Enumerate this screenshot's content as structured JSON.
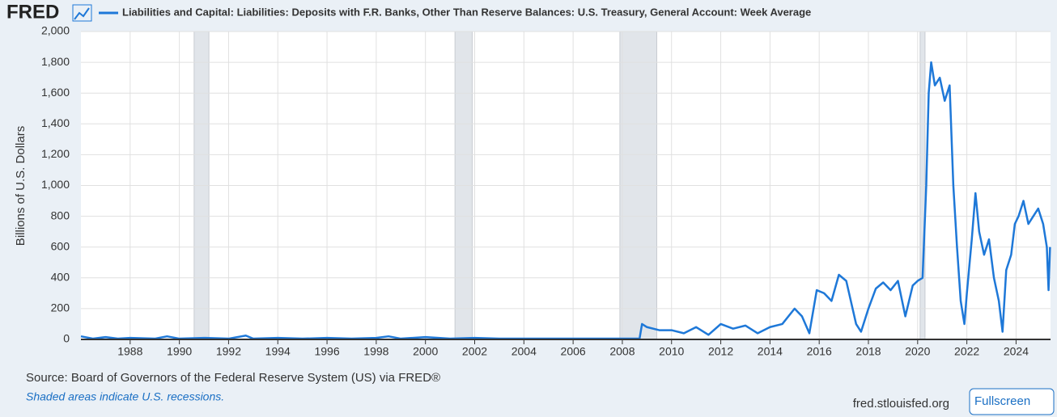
{
  "logo": "FRED",
  "chart_data": {
    "type": "line",
    "y_label": "Billions of U.S. Dollars",
    "series": [
      {
        "name": "Liabilities and Capital: Liabilities: Deposits with F.R. Banks, Other Than Reserve Balances: U.S. Treasury, General Account: Week Average",
        "color": "#1e78d8",
        "x": [
          1986.0,
          1986.5,
          1987.0,
          1987.5,
          1988.0,
          1989.0,
          1989.5,
          1990.0,
          1991.0,
          1992.0,
          1992.7,
          1993.0,
          1994.0,
          1995.0,
          1996.0,
          1997.0,
          1998.0,
          1998.5,
          1999.0,
          2000.0,
          2001.0,
          2002.0,
          2003.0,
          2004.0,
          2005.0,
          2006.0,
          2007.0,
          2008.0,
          2008.7,
          2008.8,
          2009.0,
          2009.5,
          2010.0,
          2010.5,
          2011.0,
          2011.5,
          2012.0,
          2012.5,
          2013.0,
          2013.5,
          2014.0,
          2014.5,
          2015.0,
          2015.3,
          2015.6,
          2015.9,
          2016.2,
          2016.5,
          2016.8,
          2017.1,
          2017.5,
          2017.7,
          2018.0,
          2018.3,
          2018.6,
          2018.9,
          2019.2,
          2019.5,
          2019.8,
          2020.0,
          2020.2,
          2020.35,
          2020.45,
          2020.55,
          2020.7,
          2020.9,
          2021.1,
          2021.3,
          2021.45,
          2021.6,
          2021.75,
          2021.9,
          2022.0,
          2022.2,
          2022.35,
          2022.5,
          2022.7,
          2022.9,
          2023.1,
          2023.3,
          2023.45,
          2023.6,
          2023.8,
          2023.95,
          2024.1,
          2024.3,
          2024.5,
          2024.7,
          2024.9,
          2025.1,
          2025.25,
          2025.32,
          2025.38
        ],
        "values": [
          20,
          5,
          15,
          5,
          10,
          5,
          20,
          5,
          10,
          5,
          25,
          5,
          10,
          5,
          10,
          5,
          10,
          20,
          5,
          15,
          5,
          10,
          5,
          5,
          5,
          5,
          5,
          5,
          5,
          100,
          80,
          60,
          60,
          40,
          80,
          30,
          100,
          70,
          90,
          40,
          80,
          100,
          200,
          150,
          40,
          320,
          300,
          250,
          420,
          380,
          100,
          50,
          200,
          330,
          370,
          320,
          380,
          150,
          350,
          380,
          400,
          1000,
          1600,
          1800,
          1650,
          1700,
          1550,
          1650,
          1000,
          600,
          250,
          100,
          300,
          650,
          950,
          700,
          550,
          650,
          400,
          250,
          50,
          450,
          550,
          750,
          800,
          900,
          750,
          800,
          850,
          750,
          600,
          320,
          600
        ]
      }
    ],
    "recessions": [
      [
        1990.6,
        1991.2
      ],
      [
        2001.2,
        2001.9
      ],
      [
        2007.9,
        2009.4
      ],
      [
        2020.1,
        2020.3
      ]
    ],
    "xlim": [
      1986.0,
      2025.4
    ],
    "xticks": [
      1988,
      1990,
      1992,
      1994,
      1996,
      1998,
      2000,
      2002,
      2004,
      2006,
      2008,
      2010,
      2012,
      2014,
      2016,
      2018,
      2020,
      2022,
      2024
    ],
    "ylim": [
      0,
      2000
    ],
    "yticks": [
      0,
      200,
      400,
      600,
      800,
      {
        "value": 1000,
        "label": "1,000"
      },
      {
        "value": 1200,
        "label": "1,200"
      },
      {
        "value": 1400,
        "label": "1,400"
      },
      {
        "value": 1600,
        "label": "1,600"
      },
      {
        "value": 1800,
        "label": "1,800"
      },
      {
        "value": 2000,
        "label": "2,000"
      }
    ],
    "grid": true
  },
  "footer": {
    "source": "Source: Board of Governors of the Federal Reserve System (US) via FRED®",
    "note": "Shaded areas indicate U.S. recessions.",
    "site": "fred.stlouisfed.org",
    "button": "Fullscreen"
  }
}
